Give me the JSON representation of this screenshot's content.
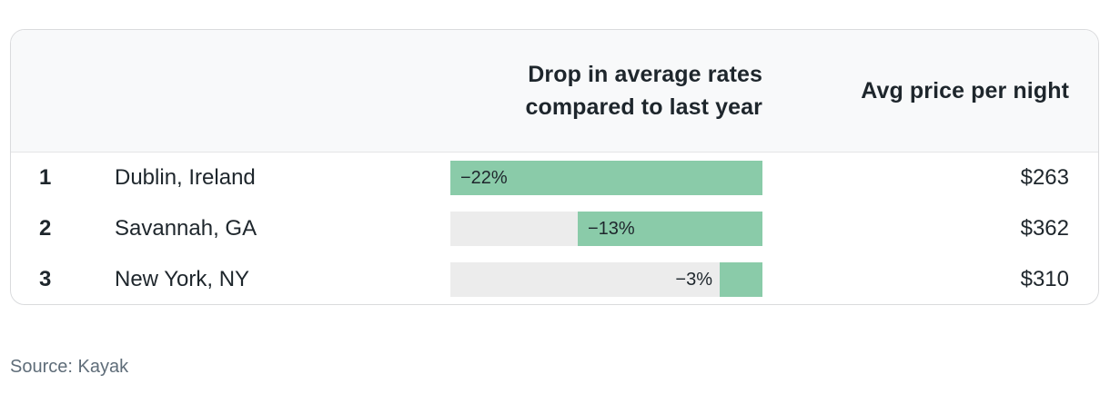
{
  "table": {
    "columns": {
      "drop_header_line1": "Drop in average rates",
      "drop_header_line2": "compared to last year",
      "price_header": "Avg price per night"
    },
    "rows": [
      {
        "rank": "1",
        "city": "Dublin, Ireland",
        "drop_label": "−22%",
        "drop_pct": 22,
        "price": "$263"
      },
      {
        "rank": "2",
        "city": "Savannah, GA",
        "drop_label": "−13%",
        "drop_pct": 13,
        "price": "$362"
      },
      {
        "rank": "3",
        "city": "New York, NY",
        "drop_label": "−3%",
        "drop_pct": 3,
        "price": "$310"
      }
    ]
  },
  "source": "Source: Kayak",
  "colors": {
    "bar_green": "#8acba9",
    "track_gray": "#ececec",
    "header_bg": "#f8f9fa",
    "text_dark": "#1e262c",
    "source_gray": "#5f6d79",
    "card_border": "#dadbdd"
  },
  "chart_data": {
    "type": "bar",
    "orientation": "horizontal",
    "title": "",
    "categories": [
      "Dublin, Ireland",
      "Savannah, GA",
      "New York, NY"
    ],
    "ranks": [
      1,
      2,
      3
    ],
    "series": [
      {
        "name": "Drop in average rates compared to last year (%)",
        "values": [
          -22,
          -13,
          -3
        ]
      },
      {
        "name": "Avg price per night ($)",
        "values": [
          263,
          362,
          310
        ]
      }
    ],
    "bar_value_labels": [
      "−22%",
      "−13%",
      "−3%"
    ],
    "price_labels": [
      "$263",
      "$362",
      "$310"
    ],
    "xlim": [
      -22,
      0
    ],
    "legend": "none",
    "grid": false,
    "bar_anchor": "right",
    "source": "Source: Kayak"
  }
}
